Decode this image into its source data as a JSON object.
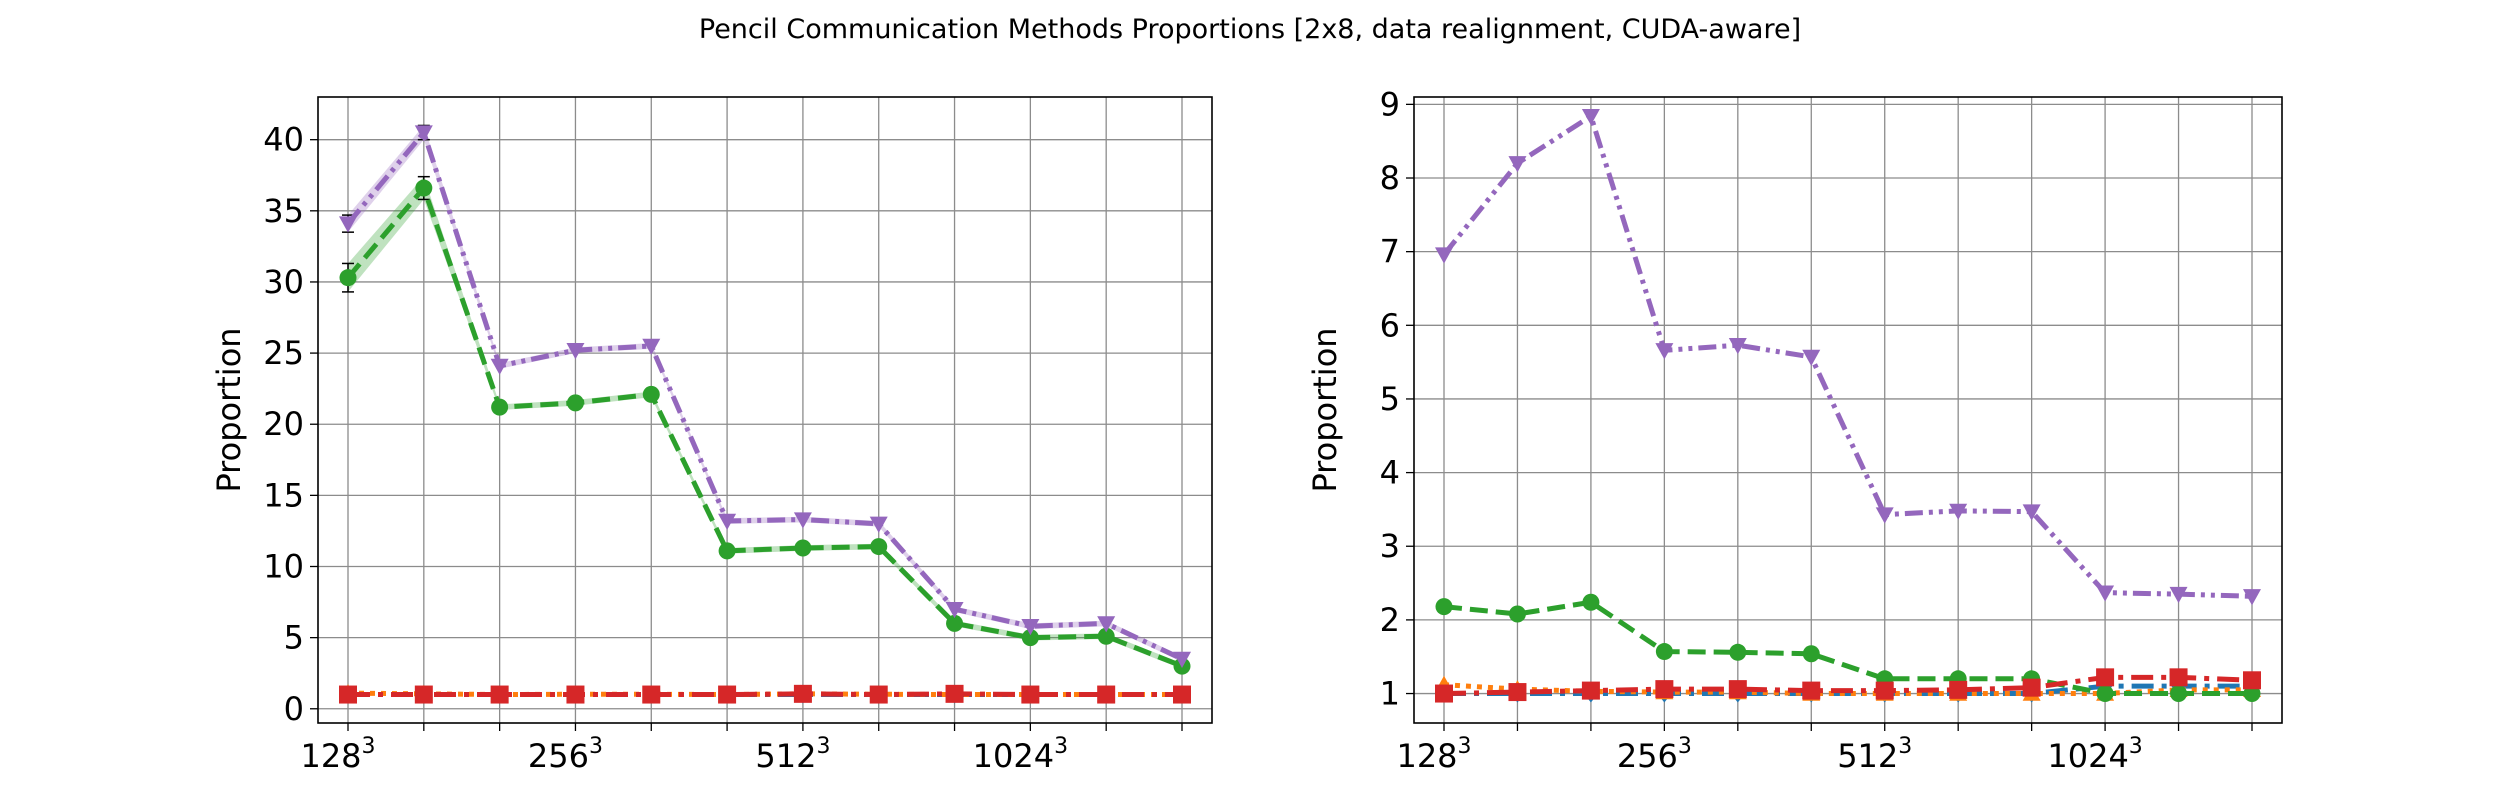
{
  "figure": {
    "title": "Pencil Communication Methods Proportions [2x8, data realignment, CUDA-aware]"
  },
  "chart_data": [
    {
      "type": "line",
      "title": "",
      "xlabel": "",
      "ylabel": "Proportion",
      "ylim": [
        -1,
        43
      ],
      "grid": true,
      "x": [
        128,
        160,
        192,
        224,
        256,
        384,
        448,
        512,
        768,
        896,
        1024,
        1536
      ],
      "x_tick_labels": [
        {
          "base": "128",
          "exp": "3",
          "index": 0
        },
        {
          "base": "256",
          "exp": "3",
          "index": 3
        },
        {
          "base": "512",
          "exp": "3",
          "index": 6
        },
        {
          "base": "1024",
          "exp": "3",
          "index": 9
        }
      ],
      "y_ticks": [
        0,
        5,
        10,
        15,
        20,
        25,
        30,
        35,
        40
      ],
      "series": [
        {
          "color": "#1f77b4",
          "linestyle": "dashdot",
          "marker": "diamond",
          "values": [
            1,
            1,
            1,
            1,
            1,
            1,
            1,
            1,
            1,
            1,
            1,
            1
          ]
        },
        {
          "color": "#ff7f0e",
          "linestyle": "dotted",
          "marker": "triangle-up",
          "values": [
            1.1,
            1.05,
            1.0,
            1.02,
            1.02,
            1.0,
            1.05,
            1.02,
            1.0,
            1.0,
            1.0,
            1.0
          ]
        },
        {
          "color": "#2ca02c",
          "linestyle": "dashed",
          "marker": "circle",
          "values": [
            30.3,
            36.6,
            21.2,
            21.5,
            22.1,
            11.1,
            11.3,
            11.4,
            6.0,
            5.0,
            5.1,
            3.0
          ],
          "band": [
            1.0,
            0.8,
            0.2,
            0.2,
            0.2,
            0.2,
            0.2,
            0.2,
            0.2,
            0.2,
            0.2,
            0.2
          ]
        },
        {
          "color": "#d62728",
          "linestyle": "dashdot",
          "marker": "square",
          "values": [
            1,
            1,
            1,
            1,
            1,
            1,
            1.05,
            1.0,
            1.05,
            1.0,
            1.0,
            1.0
          ]
        },
        {
          "color": "#9467bd",
          "linestyle": "dashdotdot",
          "marker": "triangle-down",
          "values": [
            34.1,
            40.5,
            24.1,
            25.2,
            25.5,
            13.2,
            13.3,
            13.0,
            7.0,
            5.8,
            6.0,
            3.5
          ],
          "band": [
            0.6,
            0.5,
            0.2,
            0.2,
            0.2,
            0.2,
            0.2,
            0.2,
            0.2,
            0.2,
            0.2,
            0.2
          ]
        }
      ]
    },
    {
      "type": "line",
      "title": "",
      "xlabel": "",
      "ylabel": "Proportion",
      "ylim": [
        0.6,
        9.1
      ],
      "grid": true,
      "x": [
        128,
        160,
        192,
        224,
        256,
        384,
        448,
        512,
        768,
        896,
        1024,
        1536
      ],
      "x_tick_labels": [
        {
          "base": "128",
          "exp": "3",
          "index": 0
        },
        {
          "base": "256",
          "exp": "3",
          "index": 3
        },
        {
          "base": "512",
          "exp": "3",
          "index": 6
        },
        {
          "base": "1024",
          "exp": "3",
          "index": 9
        }
      ],
      "y_ticks": [
        1,
        2,
        3,
        4,
        5,
        6,
        7,
        8,
        9
      ],
      "series": [
        {
          "color": "#1f77b4",
          "linestyle": "dashdot",
          "marker": "diamond",
          "values": [
            1,
            1,
            1,
            1,
            1,
            1,
            1,
            1,
            1,
            1.1,
            1.1,
            1.1
          ]
        },
        {
          "color": "#ff7f0e",
          "linestyle": "dotted",
          "marker": "triangle-up",
          "values": [
            1.12,
            1.06,
            1.03,
            1.02,
            1.02,
            1.0,
            1.0,
            1.0,
            1.0,
            1.0,
            1.05,
            1.05
          ]
        },
        {
          "color": "#2ca02c",
          "linestyle": "dashed",
          "marker": "circle",
          "values": [
            2.18,
            2.08,
            2.24,
            1.57,
            1.56,
            1.54,
            1.2,
            1.2,
            1.2,
            1.0,
            1.0,
            1.0
          ]
        },
        {
          "color": "#d62728",
          "linestyle": "dashdot",
          "marker": "square",
          "values": [
            1.0,
            1.02,
            1.04,
            1.06,
            1.06,
            1.04,
            1.04,
            1.05,
            1.08,
            1.22,
            1.22,
            1.18
          ]
        },
        {
          "color": "#9467bd",
          "linestyle": "dashdotdot",
          "marker": "triangle-down",
          "values": [
            6.96,
            8.2,
            8.84,
            5.66,
            5.73,
            5.57,
            3.43,
            3.48,
            3.47,
            2.37,
            2.35,
            2.32
          ]
        }
      ]
    }
  ]
}
